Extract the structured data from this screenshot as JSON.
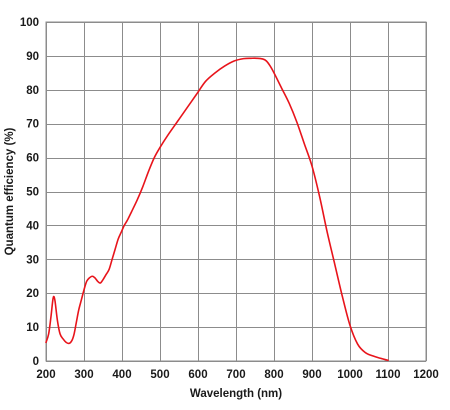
{
  "chart_data": {
    "type": "line",
    "xlabel": "Wavelength (nm)",
    "ylabel": "Quantum efficiency (%)",
    "xlim": [
      200,
      1200
    ],
    "ylim": [
      0,
      100
    ],
    "x_ticks": [
      200,
      300,
      400,
      500,
      600,
      700,
      800,
      900,
      1000,
      1100,
      1200
    ],
    "y_ticks": [
      0,
      10,
      20,
      30,
      40,
      50,
      60,
      70,
      80,
      90,
      100
    ],
    "grid": true,
    "legend": "none",
    "series": [
      {
        "color": "#e8141b",
        "x": [
          200,
          207,
          213,
          218,
          221,
          224,
          230,
          237,
          245,
          253,
          261,
          268,
          274,
          280,
          286,
          293,
          300,
          307,
          314,
          322,
          329,
          336,
          343,
          350,
          358,
          366,
          374,
          382,
          390,
          398,
          406,
          414,
          425,
          440,
          455,
          470,
          485,
          500,
          520,
          545,
          570,
          595,
          620,
          645,
          670,
          695,
          720,
          740,
          755,
          770,
          780,
          790,
          800,
          820,
          840,
          860,
          880,
          900,
          920,
          940,
          960,
          980,
          1000,
          1020,
          1040,
          1060,
          1080,
          1100
        ],
        "y": [
          5.5,
          8,
          13,
          18,
          19,
          17.5,
          12,
          8,
          6.5,
          5.5,
          5.2,
          6,
          8,
          11.5,
          15,
          18,
          21,
          23.5,
          24.5,
          25,
          24.5,
          23.5,
          23,
          24,
          25.5,
          27,
          30,
          33,
          36,
          38,
          40,
          41.5,
          44,
          47.5,
          51.5,
          56,
          60,
          63,
          66.5,
          70.5,
          74.5,
          78.5,
          82.5,
          85,
          87,
          88.5,
          89.2,
          89.3,
          89.3,
          89.1,
          88.5,
          87,
          85,
          80.5,
          76,
          70.5,
          64,
          57.5,
          48.5,
          38,
          28.5,
          19,
          10.5,
          5,
          2.5,
          1.5,
          0.8,
          0.2
        ]
      }
    ]
  }
}
